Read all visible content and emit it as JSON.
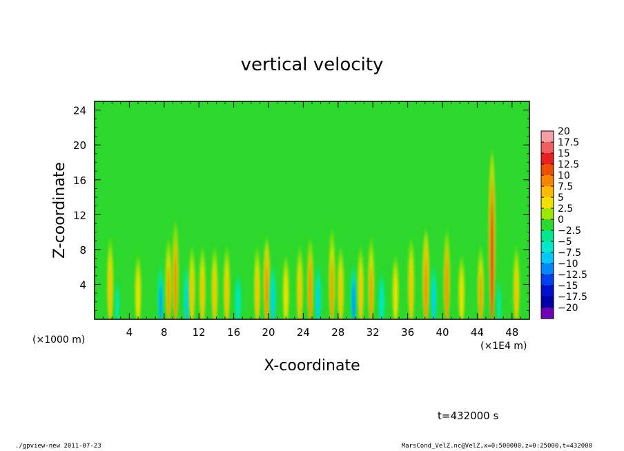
{
  "chart_data": {
    "type": "heatmap",
    "title": "vertical velocity",
    "xlabel": "X-coordinate",
    "ylabel": "Z-coordinate",
    "x_unit_left": "(×1000 m)",
    "x_unit_right": "(×1E4 m)",
    "xlim": [
      0,
      50
    ],
    "ylim": [
      0,
      25
    ],
    "x_ticks": [
      "4",
      "8",
      "12",
      "16",
      "20",
      "24",
      "28",
      "32",
      "36",
      "40",
      "44",
      "48"
    ],
    "y_ticks": [
      "4",
      "8",
      "12",
      "16",
      "20",
      "24"
    ],
    "colorbar": {
      "labels": [
        "20",
        "17.5",
        "15",
        "12.5",
        "10",
        "7.5",
        "5",
        "2.5",
        "0",
        "−2.5",
        "−5",
        "−7.5",
        "−10",
        "−12.5",
        "−15",
        "−17.5",
        "−20"
      ],
      "colors": [
        "#f4a0a0",
        "#ef5f5f",
        "#ea2020",
        "#f04e00",
        "#f88400",
        "#ffb800",
        "#f0e000",
        "#9ee600",
        "#2bd82b",
        "#00e88c",
        "#00e8c8",
        "#00c8f8",
        "#0088ff",
        "#0040f0",
        "#0010d0",
        "#0000a8",
        "#7000b8"
      ]
    },
    "time_label": "t=432000 s",
    "plumes": [
      {
        "x": 1.8,
        "amp": 8,
        "top": 9
      },
      {
        "x": 2.6,
        "amp": -5,
        "top": 5
      },
      {
        "x": 5.0,
        "amp": 6,
        "top": 7
      },
      {
        "x": 7.6,
        "amp": -9,
        "top": 6
      },
      {
        "x": 8.5,
        "amp": 9,
        "top": 9
      },
      {
        "x": 9.3,
        "amp": 10,
        "top": 11
      },
      {
        "x": 10.6,
        "amp": -8,
        "top": 6
      },
      {
        "x": 11.2,
        "amp": 7,
        "top": 8
      },
      {
        "x": 12.4,
        "amp": 8,
        "top": 8
      },
      {
        "x": 13.8,
        "amp": 7,
        "top": 8
      },
      {
        "x": 15.2,
        "amp": 8,
        "top": 8
      },
      {
        "x": 16.5,
        "amp": -6,
        "top": 5
      },
      {
        "x": 18.7,
        "amp": 8,
        "top": 8
      },
      {
        "x": 19.8,
        "amp": 11,
        "top": 9
      },
      {
        "x": 20.5,
        "amp": -8,
        "top": 6
      },
      {
        "x": 22.0,
        "amp": 6,
        "top": 7
      },
      {
        "x": 23.6,
        "amp": 8,
        "top": 8
      },
      {
        "x": 24.8,
        "amp": 10,
        "top": 9
      },
      {
        "x": 25.7,
        "amp": -7,
        "top": 6
      },
      {
        "x": 27.3,
        "amp": 9,
        "top": 10
      },
      {
        "x": 28.3,
        "amp": 8,
        "top": 8
      },
      {
        "x": 29.8,
        "amp": -10,
        "top": 6
      },
      {
        "x": 30.6,
        "amp": 8,
        "top": 8
      },
      {
        "x": 31.8,
        "amp": 9,
        "top": 9
      },
      {
        "x": 33.0,
        "amp": -6,
        "top": 5
      },
      {
        "x": 34.6,
        "amp": 6,
        "top": 7
      },
      {
        "x": 36.4,
        "amp": 7,
        "top": 9
      },
      {
        "x": 38.1,
        "amp": 11,
        "top": 10
      },
      {
        "x": 39.0,
        "amp": -7,
        "top": 6
      },
      {
        "x": 40.5,
        "amp": 10,
        "top": 10
      },
      {
        "x": 42.2,
        "amp": 6,
        "top": 7
      },
      {
        "x": 44.4,
        "amp": 9,
        "top": 8
      },
      {
        "x": 45.7,
        "amp": 15,
        "top": 19
      },
      {
        "x": 46.5,
        "amp": -5,
        "top": 5
      },
      {
        "x": 48.5,
        "amp": 7,
        "top": 8
      }
    ]
  },
  "footer": {
    "left": "./gpview-new   2011-07-23",
    "right": "MarsCond_VelZ.nc@VelZ,x=0:500000,z=0:25000,t=432000"
  }
}
